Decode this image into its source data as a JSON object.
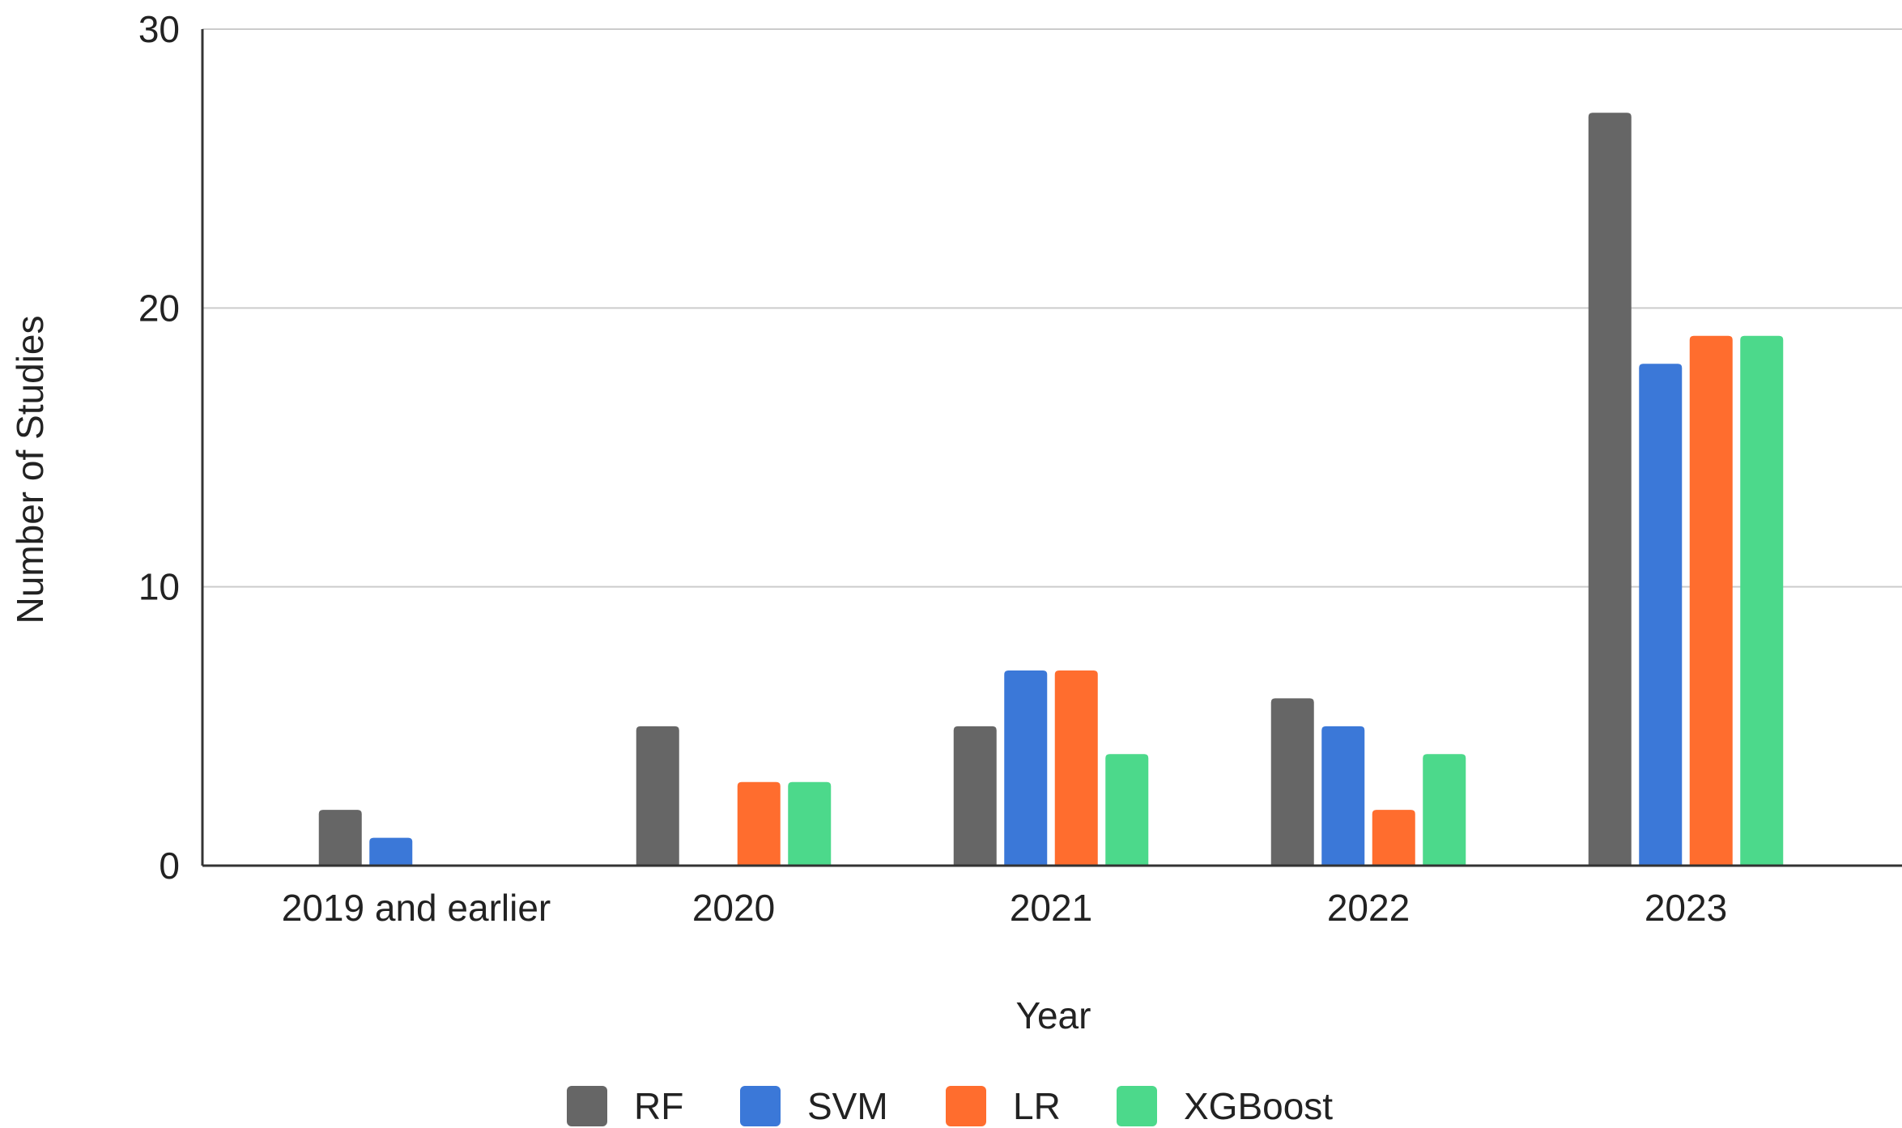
{
  "chart_data": {
    "type": "bar",
    "categories": [
      "2019 and earlier",
      "2020",
      "2021",
      "2022",
      "2023"
    ],
    "series": [
      {
        "name": "RF",
        "color": "#666666",
        "values": [
          2,
          5,
          5,
          6,
          27
        ]
      },
      {
        "name": "SVM",
        "color": "#3b78d8",
        "values": [
          1,
          0,
          7,
          5,
          18
        ]
      },
      {
        "name": "LR",
        "color": "#ff6d2e",
        "values": [
          0,
          3,
          7,
          2,
          19
        ]
      },
      {
        "name": "XGBoost",
        "color": "#4cd98b",
        "values": [
          0,
          3,
          4,
          4,
          19
        ]
      }
    ],
    "xlabel": "Year",
    "ylabel": "Number of Studies",
    "ylim": [
      0,
      30
    ],
    "yticks": [
      "0",
      "10",
      "20",
      "30"
    ],
    "grid": true,
    "legend_position": "bottom"
  }
}
